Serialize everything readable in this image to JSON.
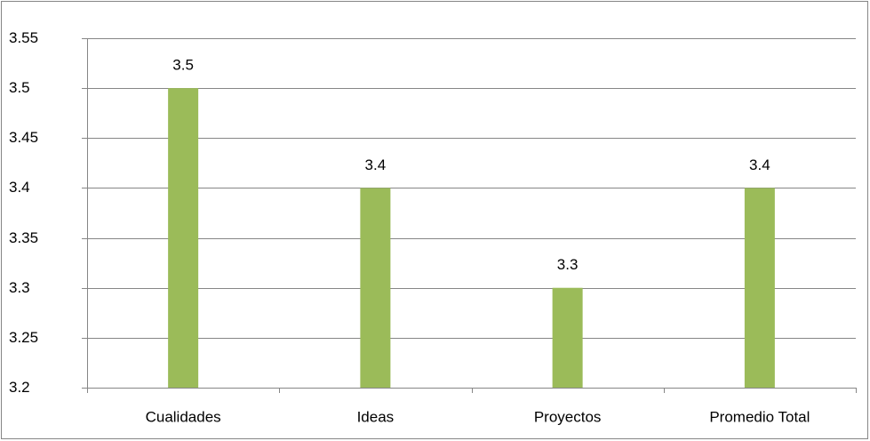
{
  "chart_data": {
    "type": "bar",
    "categories": [
      "Cualidades",
      "Ideas",
      "Proyectos",
      "Promedio Total"
    ],
    "values": [
      3.5,
      3.4,
      3.3,
      3.4
    ],
    "color": "#9bbb59",
    "ylim": [
      3.2,
      3.55
    ],
    "yticks": [
      3.2,
      3.25,
      3.3,
      3.35,
      3.4,
      3.45,
      3.5,
      3.55
    ],
    "grid": true
  }
}
